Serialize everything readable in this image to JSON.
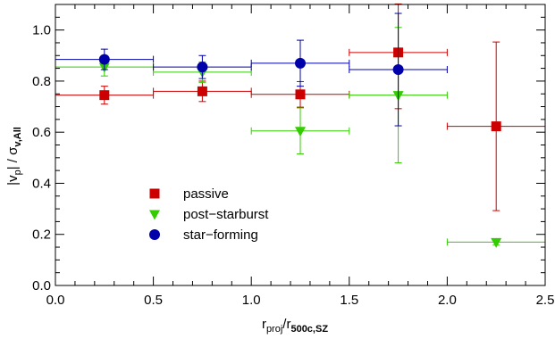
{
  "chart_data": {
    "type": "scatter",
    "xlim": [
      0.0,
      2.5
    ],
    "ylim": [
      0.0,
      1.1
    ],
    "xticks": [
      "0.0",
      "0.5",
      "1.0",
      "1.5",
      "2.0",
      "2.5"
    ],
    "yticks": [
      "0.0",
      "0.2",
      "0.4",
      "0.6",
      "0.8",
      "1.0"
    ],
    "xlabel": {
      "main": "r",
      "sub1": "proj",
      "sep": "/r",
      "sub2": "500c,SZ"
    },
    "ylabel": {
      "main": "|v",
      "sub1": "p",
      "mid": "| / σ",
      "sub2": "v,All"
    },
    "legend_position": "center-left",
    "series": [
      {
        "name": "passive",
        "color": "#cc0000",
        "marker": "square",
        "points": [
          {
            "x": 0.25,
            "y": 0.745,
            "xerr": 0.25,
            "yerr": [
              0.035,
              0.035
            ]
          },
          {
            "x": 0.75,
            "y": 0.76,
            "xerr": 0.25,
            "yerr": [
              0.04,
              0.04
            ]
          },
          {
            "x": 1.25,
            "y": 0.748,
            "xerr": 0.25,
            "yerr": [
              0.05,
              0.05
            ]
          },
          {
            "x": 1.75,
            "y": 0.912,
            "xerr": 0.25,
            "yerr": [
              0.22,
              0.19
            ]
          },
          {
            "x": 2.25,
            "y": 0.623,
            "xerr": 0.25,
            "yerr": [
              0.33,
              0.33
            ]
          }
        ]
      },
      {
        "name": "post−starburst",
        "color": "#33cc00",
        "marker": "triangle-down",
        "points": [
          {
            "x": 0.25,
            "y": 0.855,
            "xerr": 0.25,
            "yerr": [
              0.035,
              0.035
            ]
          },
          {
            "x": 0.75,
            "y": 0.835,
            "xerr": 0.25,
            "yerr": [
              0.04,
              0.04
            ]
          },
          {
            "x": 1.25,
            "y": 0.605,
            "xerr": 0.25,
            "yerr": [
              0.09,
              0.09
            ]
          },
          {
            "x": 1.75,
            "y": 0.745,
            "xerr": 0.25,
            "yerr": [
              0.265,
              0.265
            ]
          },
          {
            "x": 2.25,
            "y": 0.17,
            "xerr": 0.25,
            "yerr": [
              0.012,
              0.012
            ]
          }
        ]
      },
      {
        "name": "star−forming",
        "color": "#0000aa",
        "marker": "circle",
        "points": [
          {
            "x": 0.25,
            "y": 0.885,
            "xerr": 0.25,
            "yerr": [
              0.04,
              0.04
            ]
          },
          {
            "x": 0.75,
            "y": 0.855,
            "xerr": 0.25,
            "yerr": [
              0.045,
              0.045
            ]
          },
          {
            "x": 1.25,
            "y": 0.87,
            "xerr": 0.25,
            "yerr": [
              0.09,
              0.09
            ]
          },
          {
            "x": 1.75,
            "y": 0.845,
            "xerr": 0.25,
            "yerr": [
              0.22,
              0.22
            ]
          }
        ]
      }
    ]
  }
}
